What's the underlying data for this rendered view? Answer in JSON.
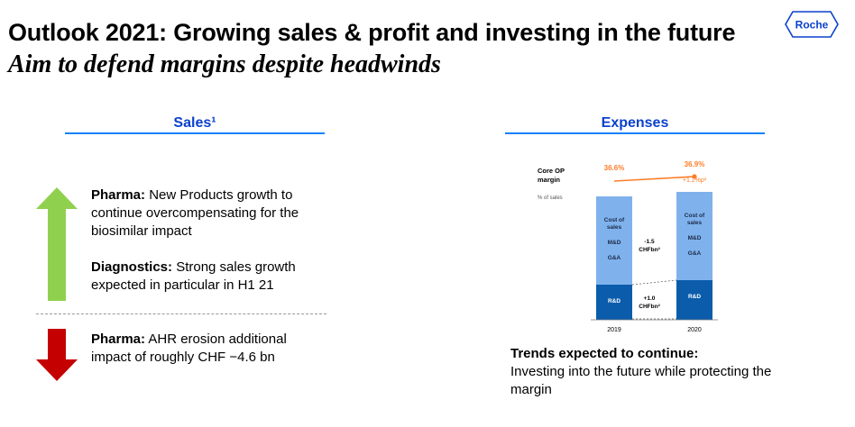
{
  "header": {
    "title": "Outlook 2021: Growing sales & profit and investing in the future",
    "subtitle": "Aim to defend margins despite headwinds",
    "logo_text": "Roche"
  },
  "sales": {
    "heading": "Sales¹",
    "pharma_up_label": "Pharma:",
    "pharma_up_text": "New Products growth to continue overcompensating for the biosimilar impact",
    "diagnostics_label": "Diagnostics:",
    "diagnostics_text": "Strong sales growth expected in particular in H1 21",
    "pharma_down_label": "Pharma:",
    "pharma_down_text": "AHR erosion additional impact of roughly CHF −4.6 bn"
  },
  "expenses": {
    "heading": "Expenses",
    "trend_title": "Trends expected to continue:",
    "trend_text": "Investing into the future while protecting the margin"
  },
  "chart_data": {
    "type": "bar",
    "categories": [
      "2019",
      "2020"
    ],
    "row_label": "Core OP margin",
    "row_label_lines": [
      "Core OP",
      "margin"
    ],
    "axis_note": "% of sales",
    "margin_values": [
      "36.6%",
      "36.9%"
    ],
    "margin_change": "+1.2%p²",
    "segments": [
      {
        "name": "Cost of sales M&D G&A",
        "lines": [
          "Cost of",
          "sales",
          "M&D",
          "G&A"
        ]
      },
      {
        "name": "R&D",
        "lines": [
          "R&D"
        ]
      }
    ],
    "deltas": [
      {
        "lines": [
          "-1.5",
          "CHFbn²"
        ]
      },
      {
        "lines": [
          "+1.0",
          "CHFbn²"
        ]
      }
    ],
    "colors": {
      "upper": "#7fb2ec",
      "lower": "#0b5cab",
      "margin_line": "#ff7d29"
    }
  },
  "colors": {
    "heading": "#0b41cd",
    "rule": "#1482fa",
    "arrow_up": "#8fd14f",
    "arrow_down": "#c40000",
    "logo": "#0b41cd"
  }
}
